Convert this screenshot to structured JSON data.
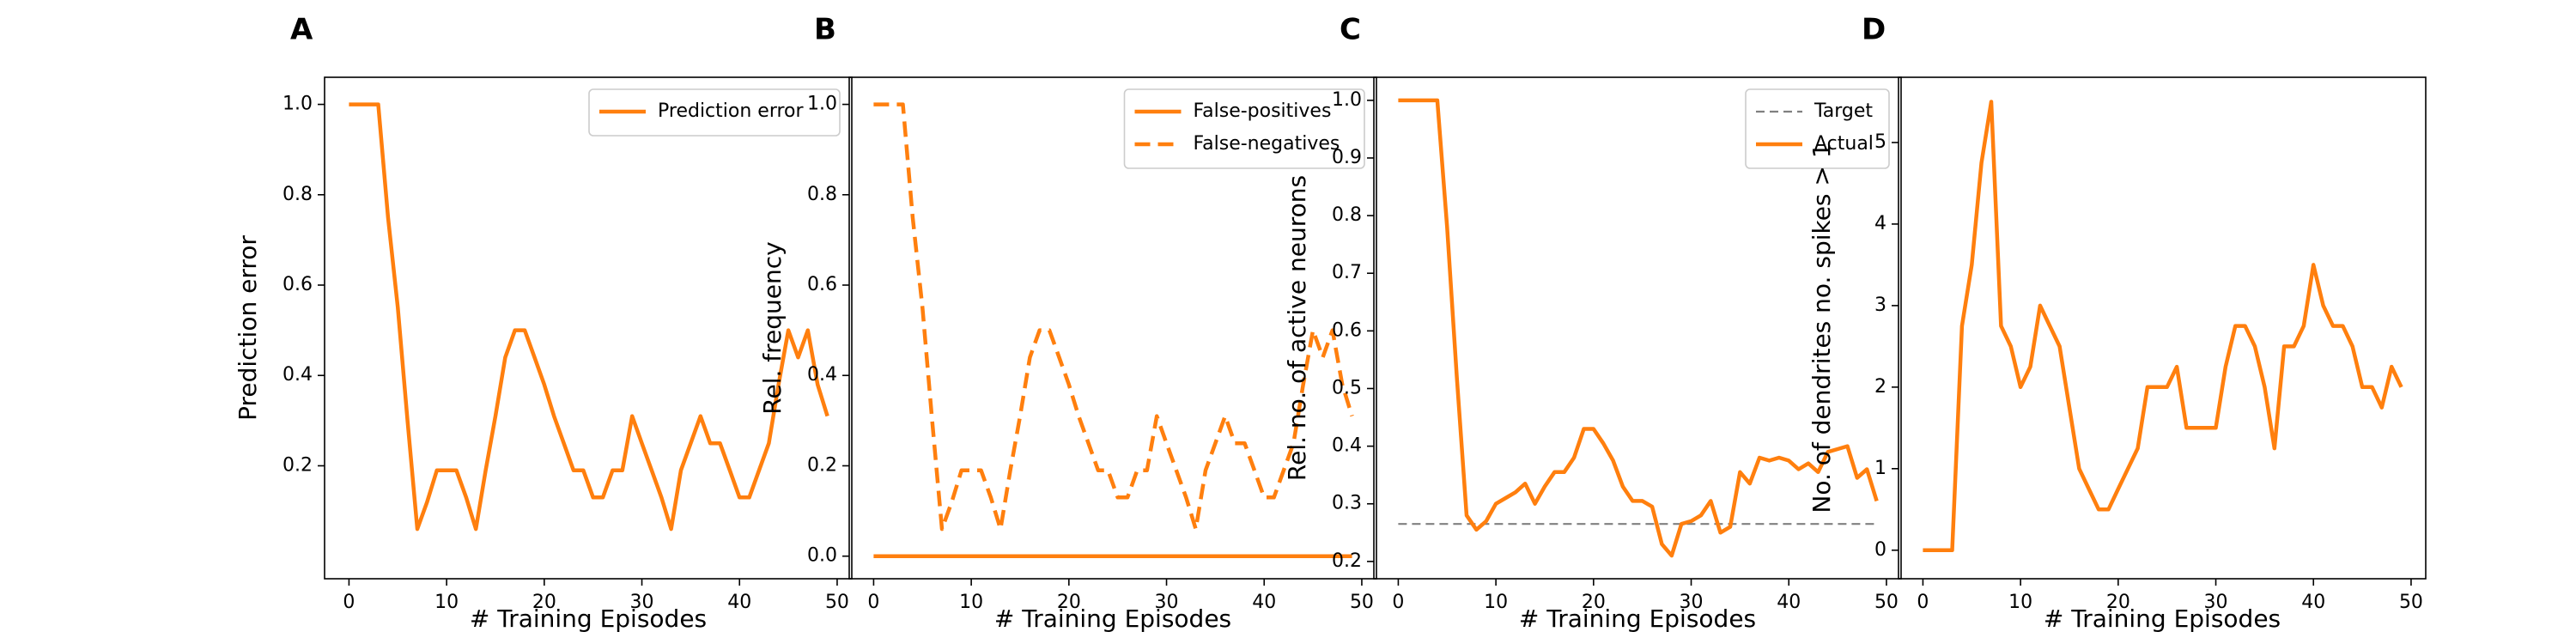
{
  "chart_data": [
    {
      "panel": "A",
      "type": "line",
      "xlabel": "# Training Episodes",
      "ylabel": "Prediction error",
      "xlim": [
        -2.5,
        51.5
      ],
      "ylim": [
        -0.05,
        1.06
      ],
      "xticks": [
        0,
        10,
        20,
        30,
        40,
        50
      ],
      "yticks": [
        0.2,
        0.4,
        0.6,
        0.8,
        1.0
      ],
      "ytick_labels": [
        "0.2",
        "0.4",
        "0.6",
        "0.8",
        "1.0"
      ],
      "grid": false,
      "legend": "top-right",
      "series": [
        {
          "name": "Prediction error",
          "color": "#ff7f0e",
          "style": "solid",
          "x": [
            0,
            1,
            2,
            3,
            4,
            5,
            6,
            7,
            8,
            9,
            10,
            11,
            12,
            13,
            14,
            15,
            16,
            17,
            18,
            19,
            20,
            21,
            22,
            23,
            24,
            25,
            26,
            27,
            28,
            29,
            30,
            31,
            32,
            33,
            34,
            35,
            36,
            37,
            38,
            39,
            40,
            41,
            42,
            43,
            44,
            45,
            46,
            47,
            48,
            49
          ],
          "y": [
            1.0,
            1.0,
            1.0,
            1.0,
            0.75,
            0.55,
            0.3,
            0.06,
            0.12,
            0.19,
            0.19,
            0.19,
            0.13,
            0.06,
            0.19,
            0.31,
            0.44,
            0.5,
            0.5,
            0.44,
            0.38,
            0.31,
            0.25,
            0.19,
            0.19,
            0.13,
            0.13,
            0.19,
            0.19,
            0.31,
            0.25,
            0.19,
            0.13,
            0.06,
            0.19,
            0.25,
            0.31,
            0.25,
            0.25,
            0.19,
            0.13,
            0.13,
            0.19,
            0.25,
            0.38,
            0.5,
            0.44,
            0.5,
            0.38,
            0.31
          ]
        }
      ]
    },
    {
      "panel": "B",
      "type": "line",
      "xlabel": "# Training Episodes",
      "ylabel": "Rel. frequency",
      "xlim": [
        -2.5,
        51.5
      ],
      "ylim": [
        -0.05,
        1.06
      ],
      "xticks": [
        0,
        10,
        20,
        30,
        40,
        50
      ],
      "yticks": [
        0.0,
        0.2,
        0.4,
        0.6,
        0.8,
        1.0
      ],
      "ytick_labels": [
        "0.0",
        "0.2",
        "0.4",
        "0.6",
        "0.8",
        "1.0"
      ],
      "grid": false,
      "legend": "top-right",
      "series": [
        {
          "name": "False-positives",
          "color": "#ff7f0e",
          "style": "solid",
          "x": [
            0,
            1,
            2,
            3,
            4,
            5,
            6,
            7,
            8,
            9,
            10,
            11,
            12,
            13,
            14,
            15,
            16,
            17,
            18,
            19,
            20,
            21,
            22,
            23,
            24,
            25,
            26,
            27,
            28,
            29,
            30,
            31,
            32,
            33,
            34,
            35,
            36,
            37,
            38,
            39,
            40,
            41,
            42,
            43,
            44,
            45,
            46,
            47,
            48,
            49
          ],
          "y": [
            0,
            0,
            0,
            0,
            0,
            0,
            0,
            0,
            0,
            0,
            0,
            0,
            0,
            0,
            0,
            0,
            0,
            0,
            0,
            0,
            0,
            0,
            0,
            0,
            0,
            0,
            0,
            0,
            0,
            0,
            0,
            0,
            0,
            0,
            0,
            0,
            0,
            0,
            0,
            0,
            0,
            0,
            0,
            0,
            0,
            0,
            0,
            0,
            0,
            0
          ]
        },
        {
          "name": "False-negatives",
          "color": "#ff7f0e",
          "style": "dashed",
          "x": [
            0,
            1,
            2,
            3,
            4,
            5,
            6,
            7,
            8,
            9,
            10,
            11,
            12,
            13,
            14,
            15,
            16,
            17,
            18,
            19,
            20,
            21,
            22,
            23,
            24,
            25,
            26,
            27,
            28,
            29,
            30,
            31,
            32,
            33,
            34,
            35,
            36,
            37,
            38,
            39,
            40,
            41,
            42,
            43,
            44,
            45,
            46,
            47,
            48,
            49
          ],
          "y": [
            1.0,
            1.0,
            1.0,
            1.0,
            0.75,
            0.55,
            0.3,
            0.06,
            0.12,
            0.19,
            0.19,
            0.19,
            0.13,
            0.06,
            0.19,
            0.31,
            0.44,
            0.5,
            0.5,
            0.44,
            0.38,
            0.31,
            0.25,
            0.19,
            0.19,
            0.13,
            0.13,
            0.19,
            0.19,
            0.31,
            0.25,
            0.19,
            0.13,
            0.06,
            0.19,
            0.25,
            0.31,
            0.25,
            0.25,
            0.19,
            0.13,
            0.13,
            0.19,
            0.25,
            0.38,
            0.5,
            0.44,
            0.5,
            0.38,
            0.31
          ]
        }
      ]
    },
    {
      "panel": "C",
      "type": "line",
      "xlabel": "# Training Episodes",
      "ylabel": "Rel. no. of active neurons",
      "xlim": [
        -2.5,
        51.5
      ],
      "ylim": [
        0.17,
        1.04
      ],
      "xticks": [
        0,
        10,
        20,
        30,
        40,
        50
      ],
      "yticks": [
        0.2,
        0.3,
        0.4,
        0.5,
        0.6,
        0.7,
        0.8,
        0.9,
        1.0
      ],
      "ytick_labels": [
        "0.2",
        "0.3",
        "0.4",
        "0.5",
        "0.6",
        "0.7",
        "0.8",
        "0.9",
        "1.0"
      ],
      "grid": false,
      "legend": "top-right",
      "series": [
        {
          "name": "Target",
          "color": "#808080",
          "style": "dashed",
          "x": [
            0,
            49
          ],
          "y": [
            0.265,
            0.265
          ]
        },
        {
          "name": "Actual",
          "color": "#ff7f0e",
          "style": "solid",
          "x": [
            0,
            1,
            2,
            3,
            4,
            5,
            6,
            7,
            8,
            9,
            10,
            11,
            12,
            13,
            14,
            15,
            16,
            17,
            18,
            19,
            20,
            21,
            22,
            23,
            24,
            25,
            26,
            27,
            28,
            29,
            30,
            31,
            32,
            33,
            34,
            35,
            36,
            37,
            38,
            39,
            40,
            41,
            42,
            43,
            44,
            45,
            46,
            47,
            48,
            49
          ],
          "y": [
            1.0,
            1.0,
            1.0,
            1.0,
            1.0,
            0.78,
            0.52,
            0.28,
            0.255,
            0.27,
            0.3,
            0.31,
            0.32,
            0.335,
            0.3,
            0.33,
            0.355,
            0.355,
            0.38,
            0.43,
            0.43,
            0.405,
            0.375,
            0.33,
            0.305,
            0.305,
            0.295,
            0.23,
            0.21,
            0.265,
            0.27,
            0.28,
            0.305,
            0.25,
            0.26,
            0.355,
            0.335,
            0.38,
            0.375,
            0.38,
            0.375,
            0.36,
            0.37,
            0.355,
            0.39,
            0.395,
            0.4,
            0.345,
            0.36,
            0.305
          ]
        }
      ]
    },
    {
      "panel": "D",
      "type": "line",
      "xlabel": "# Training Episodes",
      "ylabel": "No. of dendrites no. spikes > 1",
      "xlim": [
        -2.5,
        51.5
      ],
      "ylim": [
        -0.35,
        5.8
      ],
      "xticks": [
        0,
        10,
        20,
        30,
        40,
        50
      ],
      "yticks": [
        0,
        1,
        2,
        3,
        4,
        5
      ],
      "ytick_labels": [
        "0",
        "1",
        "2",
        "3",
        "4",
        "5"
      ],
      "grid": false,
      "legend": "none",
      "series": [
        {
          "color": "#ff7f0e",
          "style": "solid",
          "x": [
            0,
            1,
            2,
            3,
            4,
            5,
            6,
            7,
            8,
            9,
            10,
            11,
            12,
            13,
            14,
            15,
            16,
            17,
            18,
            19,
            20,
            21,
            22,
            23,
            24,
            25,
            26,
            27,
            28,
            29,
            30,
            31,
            32,
            33,
            34,
            35,
            36,
            37,
            38,
            39,
            40,
            41,
            42,
            43,
            44,
            45,
            46,
            47,
            48,
            49
          ],
          "y": [
            0,
            0,
            0,
            0,
            2.75,
            3.5,
            4.75,
            5.5,
            2.75,
            2.5,
            2.0,
            2.25,
            3.0,
            2.75,
            2.5,
            1.75,
            1.0,
            0.75,
            0.5,
            0.5,
            0.75,
            1.0,
            1.25,
            2.0,
            2.0,
            2.0,
            2.25,
            1.5,
            1.5,
            1.5,
            1.5,
            2.25,
            2.75,
            2.75,
            2.5,
            2.0,
            1.25,
            2.5,
            2.5,
            2.75,
            3.5,
            3.0,
            2.75,
            2.75,
            2.5,
            2.0,
            2.0,
            1.75,
            2.25,
            2.0
          ]
        }
      ]
    }
  ]
}
